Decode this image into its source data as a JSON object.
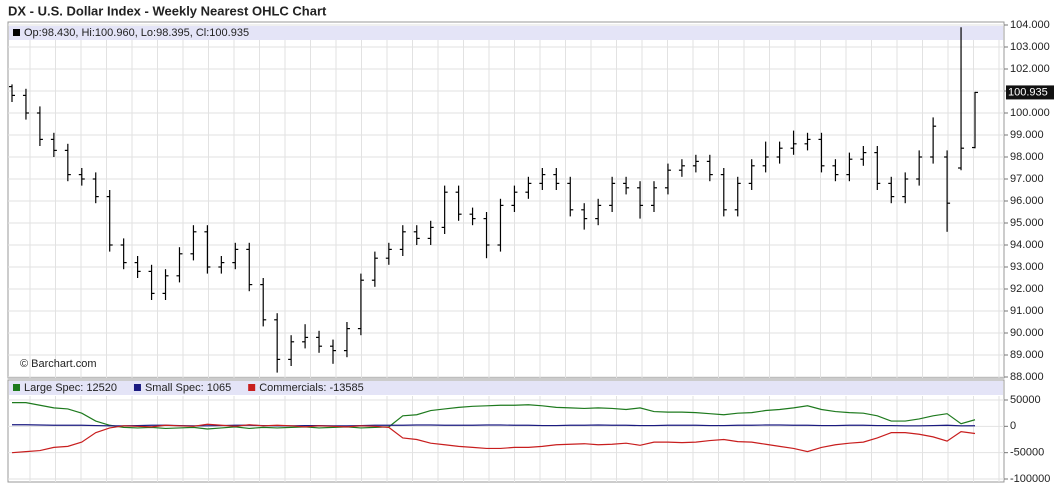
{
  "chart_data": [
    {
      "type": "ohlc",
      "title": "DX - U.S. Dollar Index - Weekly Nearest OHLC Chart",
      "readout": "Op:98.430, Hi:100.960, Lo:98.395, Cl:100.935",
      "credit": "© Barchart.com",
      "last_price": {
        "value": 100.935,
        "label": "100.935"
      },
      "color": "#000000",
      "grid": true,
      "ylim": [
        88,
        104
      ],
      "yticks": [
        {
          "value": 88,
          "label": "88.000"
        },
        {
          "value": 89,
          "label": "89.000"
        },
        {
          "value": 90,
          "label": "90.000"
        },
        {
          "value": 91,
          "label": "91.000"
        },
        {
          "value": 92,
          "label": "92.000"
        },
        {
          "value": 93,
          "label": "93.000"
        },
        {
          "value": 94,
          "label": "94.000"
        },
        {
          "value": 95,
          "label": "95.000"
        },
        {
          "value": 96,
          "label": "96.000"
        },
        {
          "value": 97,
          "label": "97.000"
        },
        {
          "value": 98,
          "label": "98.000"
        },
        {
          "value": 99,
          "label": "99.000"
        },
        {
          "value": 100,
          "label": "100.000"
        },
        {
          "value": 101,
          "label": "101.000"
        },
        {
          "value": 102,
          "label": "102.000"
        },
        {
          "value": 103,
          "label": "103.000"
        },
        {
          "value": 104,
          "label": "104.000"
        }
      ],
      "open": [
        101.2,
        100.8,
        100.0,
        98.8,
        98.3,
        97.2,
        97.0,
        96.2,
        94.0,
        93.2,
        92.8,
        91.8,
        92.6,
        93.6,
        94.6,
        93.0,
        93.2,
        93.8,
        92.2,
        90.6,
        88.8,
        89.6,
        89.8,
        89.4,
        89.2,
        90.2,
        92.4,
        93.4,
        93.8,
        94.6,
        94.3,
        94.8,
        96.4,
        95.4,
        95.2,
        94.0,
        95.8,
        96.4,
        96.8,
        97.2,
        96.8,
        95.6,
        95.2,
        95.8,
        96.8,
        96.6,
        95.8,
        96.6,
        97.4,
        97.6,
        97.8,
        97.2,
        95.6,
        96.8,
        97.6,
        98.0,
        98.4,
        98.6,
        98.8,
        97.6,
        97.2,
        97.9,
        98.2,
        96.8,
        96.2,
        97.0,
        98.0,
        98.0,
        97.5,
        98.43
      ],
      "high": [
        101.3,
        101.1,
        100.3,
        99.1,
        98.6,
        97.5,
        97.3,
        96.5,
        94.3,
        93.5,
        93.1,
        92.9,
        93.9,
        94.9,
        94.9,
        93.5,
        94.1,
        94.1,
        92.5,
        90.9,
        89.9,
        90.4,
        90.1,
        89.7,
        90.5,
        92.7,
        93.7,
        94.1,
        94.9,
        94.9,
        95.1,
        96.7,
        96.7,
        95.7,
        95.5,
        96.1,
        96.7,
        97.1,
        97.5,
        97.5,
        97.1,
        95.9,
        96.1,
        97.1,
        97.1,
        96.9,
        96.9,
        97.7,
        97.9,
        98.1,
        98.1,
        97.5,
        97.1,
        97.9,
        98.7,
        98.7,
        99.2,
        99.1,
        99.1,
        97.9,
        98.2,
        98.5,
        98.5,
        97.1,
        97.3,
        98.3,
        99.8,
        98.3,
        103.9,
        100.96
      ],
      "low": [
        100.5,
        99.7,
        98.5,
        98.0,
        96.9,
        96.7,
        95.9,
        93.7,
        92.9,
        92.5,
        91.5,
        91.5,
        92.3,
        93.3,
        92.7,
        92.7,
        92.9,
        91.9,
        90.3,
        88.2,
        88.5,
        89.3,
        89.1,
        88.6,
        88.9,
        89.9,
        92.1,
        93.1,
        93.5,
        94.0,
        94.0,
        94.5,
        95.1,
        94.9,
        93.4,
        93.7,
        95.5,
        96.1,
        96.5,
        96.5,
        95.3,
        94.7,
        94.9,
        95.5,
        96.3,
        95.2,
        95.5,
        96.3,
        97.1,
        97.3,
        96.9,
        95.3,
        95.3,
        96.5,
        97.3,
        97.7,
        98.1,
        98.3,
        97.3,
        96.9,
        96.9,
        97.6,
        96.5,
        95.9,
        95.9,
        96.7,
        97.7,
        94.6,
        97.4,
        98.395
      ],
      "close": [
        100.8,
        100.0,
        98.8,
        98.3,
        97.2,
        97.0,
        96.2,
        94.0,
        93.2,
        92.8,
        91.8,
        92.6,
        93.6,
        94.6,
        93.0,
        93.2,
        93.8,
        92.2,
        90.6,
        88.8,
        89.6,
        89.8,
        89.4,
        89.2,
        90.2,
        92.4,
        93.4,
        93.8,
        94.6,
        94.3,
        94.8,
        96.4,
        95.4,
        95.2,
        94.0,
        95.8,
        96.4,
        96.8,
        97.2,
        96.8,
        95.6,
        95.2,
        95.8,
        96.8,
        96.6,
        95.8,
        96.6,
        97.4,
        97.6,
        97.8,
        97.2,
        95.6,
        96.8,
        97.6,
        98.0,
        98.4,
        98.6,
        98.8,
        97.6,
        97.2,
        97.9,
        98.2,
        96.8,
        96.2,
        97.0,
        98.0,
        99.4,
        95.9,
        98.4,
        100.935
      ]
    },
    {
      "type": "line",
      "grid": true,
      "ylim": [
        -100000,
        50000
      ],
      "yticks": [
        50000,
        0,
        -50000,
        -100000
      ],
      "series": [
        {
          "name": "Large Spec: 12520",
          "color": "#1e7a1e",
          "values": [
            45000,
            45000,
            40000,
            35000,
            33000,
            25000,
            10000,
            2000,
            -2000,
            -3000,
            -2000,
            -4000,
            -3000,
            -2000,
            -5000,
            -3000,
            -1000,
            -4000,
            -2000,
            -3000,
            -2000,
            -1000,
            -3000,
            -2000,
            -1000,
            -3000,
            -2000,
            -1000,
            20000,
            22000,
            30000,
            33000,
            36000,
            38000,
            39000,
            40000,
            40000,
            41000,
            39000,
            36000,
            35000,
            34000,
            35000,
            34000,
            32000,
            35000,
            28000,
            27000,
            27000,
            26000,
            24000,
            22000,
            25000,
            26000,
            30000,
            32000,
            35000,
            39000,
            32000,
            28000,
            26000,
            25000,
            20000,
            10000,
            10000,
            14000,
            20000,
            24000,
            5000,
            12520
          ]
        },
        {
          "name": "Small Spec: 1065",
          "color": "#1a1a80",
          "values": [
            3000,
            3000,
            2500,
            2000,
            2000,
            2000,
            1500,
            1000,
            1000,
            1500,
            2000,
            2000,
            1500,
            1000,
            1000,
            1500,
            2000,
            2000,
            1500,
            1000,
            1000,
            1500,
            1500,
            1000,
            1000,
            1500,
            2000,
            2000,
            2000,
            2500,
            2500,
            2000,
            2000,
            2000,
            2500,
            2500,
            2000,
            2000,
            1500,
            1500,
            2000,
            2000,
            2500,
            2000,
            2000,
            1500,
            1500,
            2000,
            2000,
            2000,
            1500,
            1500,
            2000,
            2000,
            2500,
            2500,
            2000,
            2000,
            1500,
            1500,
            2000,
            2000,
            1500,
            1500,
            1000,
            1000,
            1500,
            2000,
            1000,
            1065
          ]
        },
        {
          "name": "Commercials: -13585",
          "color": "#c81e1e",
          "values": [
            -50000,
            -48000,
            -46000,
            -40000,
            -38000,
            -30000,
            -12000,
            -3000,
            1000,
            0,
            -1000,
            2000,
            1000,
            0,
            4000,
            2000,
            0,
            3000,
            1000,
            2000,
            1000,
            -1000,
            1000,
            0,
            -1000,
            1000,
            0,
            -2000,
            -22000,
            -25000,
            -32000,
            -35000,
            -38000,
            -40000,
            -42000,
            -42000,
            -40000,
            -40000,
            -38000,
            -35000,
            -34000,
            -33000,
            -35000,
            -34000,
            -32000,
            -36000,
            -30000,
            -30000,
            -31000,
            -30000,
            -27000,
            -25000,
            -29000,
            -30000,
            -34000,
            -38000,
            -42000,
            -48000,
            -40000,
            -35000,
            -32000,
            -30000,
            -22000,
            -12000,
            -12000,
            -15000,
            -20000,
            -28000,
            -10000,
            -13585
          ]
        }
      ]
    }
  ]
}
